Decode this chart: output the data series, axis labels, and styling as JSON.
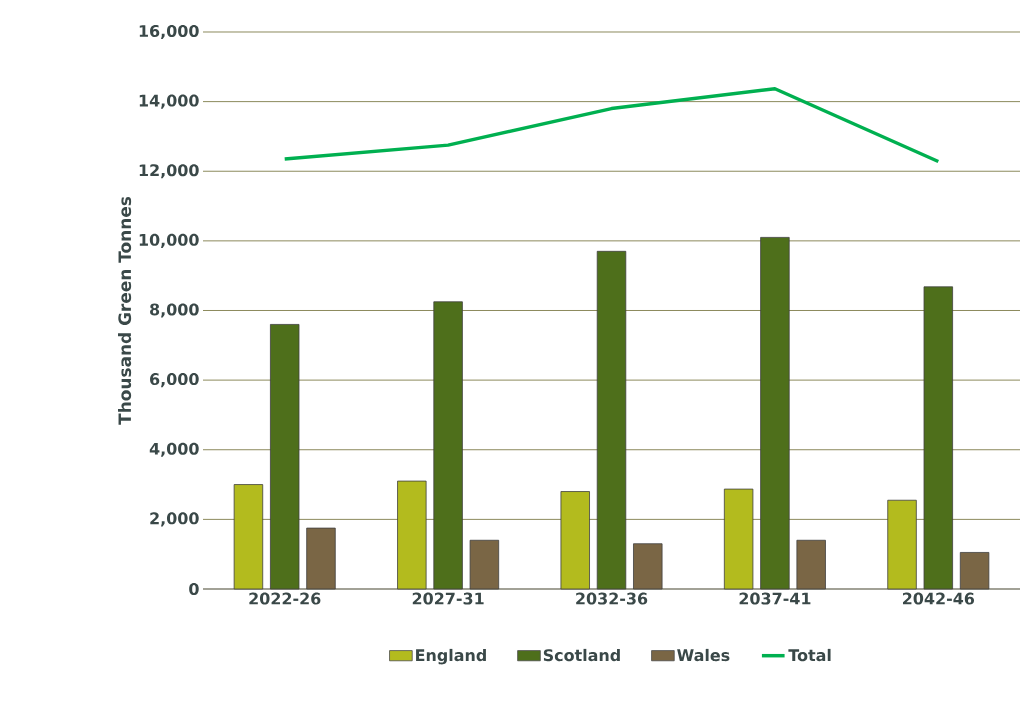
{
  "chart_data": {
    "type": "bar",
    "ylabel": "Thousand Green Tonnes",
    "categories": [
      "2022-26",
      "2027-31",
      "2032-36",
      "2037-41",
      "2042-46"
    ],
    "series": [
      {
        "name": "England",
        "color": "#b3bb1e",
        "values": [
          3000,
          3100,
          2800,
          2870,
          2550
        ]
      },
      {
        "name": "Scotland",
        "color": "#4e6f1b",
        "values": [
          7600,
          8250,
          9700,
          10100,
          8680
        ]
      },
      {
        "name": "Wales",
        "color": "#7a6645",
        "values": [
          1750,
          1400,
          1300,
          1400,
          1050
        ]
      },
      {
        "name": "Total",
        "type": "line",
        "color": "#00b050",
        "values": [
          12350,
          12750,
          13800,
          14370,
          12280
        ]
      }
    ],
    "ylim": [
      0,
      16000
    ],
    "yticks": [
      {
        "value": 0,
        "label": "0"
      },
      {
        "value": 2000,
        "label": "2,000"
      },
      {
        "value": 4000,
        "label": "4,000"
      },
      {
        "value": 6000,
        "label": "6,000"
      },
      {
        "value": 8000,
        "label": "8,000"
      },
      {
        "value": 10000,
        "label": "10,000"
      },
      {
        "value": 12000,
        "label": "12,000"
      },
      {
        "value": 14000,
        "label": "14,000"
      },
      {
        "value": 16000,
        "label": "16,000"
      }
    ],
    "grid": "y",
    "legend": "bottom"
  }
}
